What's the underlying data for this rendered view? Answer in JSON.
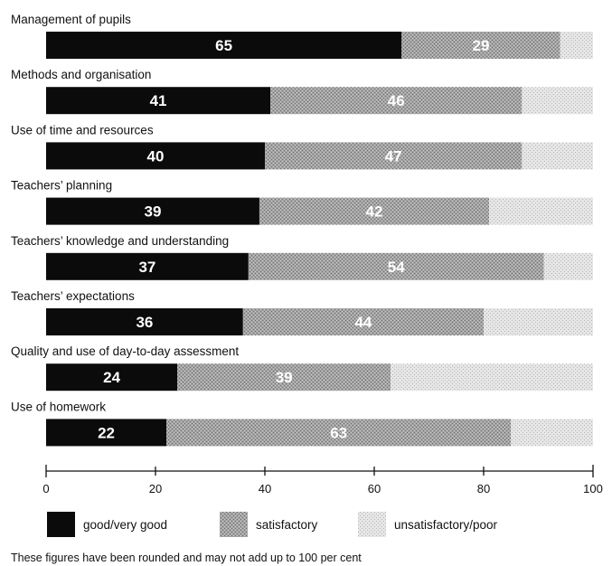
{
  "chart_data": {
    "type": "bar",
    "orientation": "horizontal",
    "stacked": true,
    "categories": [
      "Management of pupils",
      "Methods and organisation",
      "Use of time and resources",
      "Teachers’ planning",
      "Teachers’ knowledge and understanding",
      "Teachers’ expectations",
      "Quality and use of day-to-day assessment",
      "Use of homework"
    ],
    "series": [
      {
        "name": "good/very good",
        "values": [
          65,
          41,
          40,
          39,
          37,
          36,
          24,
          22
        ],
        "color": "#0b0b0b",
        "labels_shown": true
      },
      {
        "name": "satisfactory",
        "values": [
          29,
          46,
          47,
          42,
          54,
          44,
          39,
          63
        ],
        "color": "#9a9a9a",
        "labels_shown": true
      },
      {
        "name": "unsatisfactory/poor",
        "values": [
          6,
          13,
          13,
          19,
          9,
          20,
          37,
          15
        ],
        "color": "#dcdcdc",
        "labels_shown": false
      }
    ],
    "xlim": [
      0,
      100
    ],
    "xticks": [
      "0",
      "20",
      "40",
      "60",
      "80",
      "100"
    ],
    "legend_position": "bottom",
    "grid": false
  },
  "footnote": "These figures have been rounded and may not add up to 100 per cent"
}
